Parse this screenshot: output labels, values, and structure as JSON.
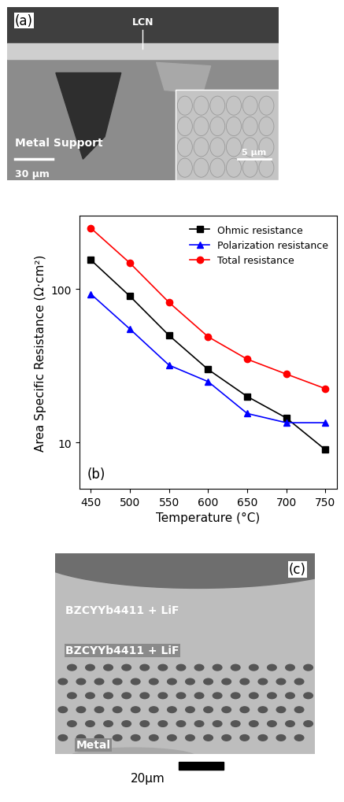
{
  "panel_a": {
    "label": "(a)",
    "texts": [
      "LCN",
      "Metal Support"
    ],
    "scale_bar": "30 µm",
    "inset_scale_bar": "5 µm"
  },
  "chart_data": {
    "type": "line",
    "annotations": [
      "(b)"
    ],
    "x_label": "Temperature (°C)",
    "y_label": "Area Specific Resistance (Ω·cm²)",
    "x": [
      450,
      500,
      550,
      600,
      650,
      700,
      750
    ],
    "series": [
      {
        "name": "Ohmic resistance",
        "color": "#000000",
        "marker": "s",
        "values": [
          155,
          90,
          50,
          30,
          20,
          14.5,
          9
        ]
      },
      {
        "name": "Polarization resistance",
        "color": "#0000ff",
        "marker": "^",
        "values": [
          93,
          55,
          32,
          25,
          15.5,
          13.5,
          13.5
        ]
      },
      {
        "name": "Total resistance",
        "color": "#ff0000",
        "marker": "o",
        "values": [
          250,
          148,
          82,
          49,
          35,
          28,
          22.5
        ]
      }
    ],
    "log": "y",
    "legend": "upper right",
    "xlim": [
      435,
      765
    ],
    "xticks": [
      450,
      500,
      550,
      600,
      650,
      700,
      750
    ],
    "ylim": [
      5,
      300
    ],
    "yticks": [
      10,
      100
    ]
  },
  "panel_c": {
    "label": "(c)",
    "texts": [
      "BZCYYb4411 + LiF",
      "BZCYYb4411 + LiF",
      "Metal"
    ],
    "scale_bar": "20µm"
  }
}
